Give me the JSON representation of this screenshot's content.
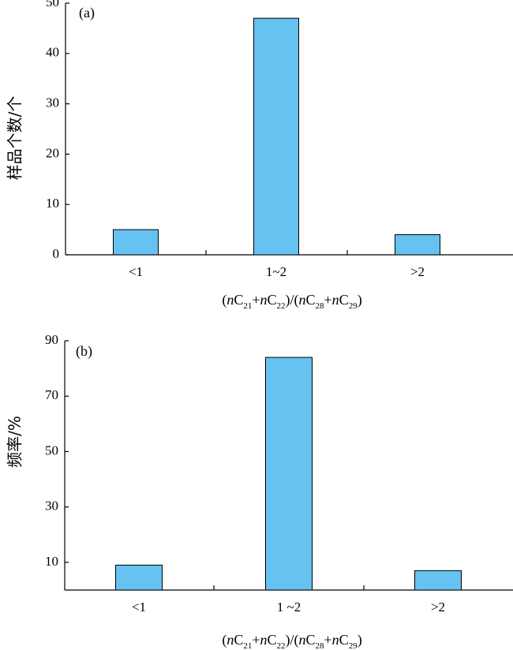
{
  "chart_data": [
    {
      "type": "bar",
      "panel_label": "(a)",
      "categories": [
        "<1",
        "1~2",
        ">2"
      ],
      "values": [
        5,
        47,
        4
      ],
      "ylim": [
        0,
        50
      ],
      "yticks": [
        "0",
        "10",
        "20",
        "30",
        "40",
        "50"
      ],
      "ylabel": "样品个数/个",
      "xlabel_parts": [
        "(",
        "n",
        "C",
        "21",
        "+",
        "n",
        "C",
        "22",
        ")/(",
        "n",
        "C",
        "28",
        "+",
        "n",
        "C",
        "29",
        ")"
      ],
      "bar_color": "#66c2f0",
      "grid": false
    },
    {
      "type": "bar",
      "panel_label": "(b)",
      "categories": [
        "<1",
        "1 ~2",
        ">2"
      ],
      "values": [
        9,
        84,
        7
      ],
      "ylim": [
        0,
        90
      ],
      "yticks": [
        "10",
        "30",
        "50",
        "70",
        "90"
      ],
      "ylabel": "频率/%",
      "xlabel_parts": [
        "(",
        "n",
        "C",
        "21",
        "+",
        "n",
        "C",
        "22",
        ")/(",
        "n",
        "C",
        "28",
        "+",
        "n",
        "C",
        "29",
        ")"
      ],
      "bar_color": "#66c2f0",
      "grid": false
    }
  ]
}
